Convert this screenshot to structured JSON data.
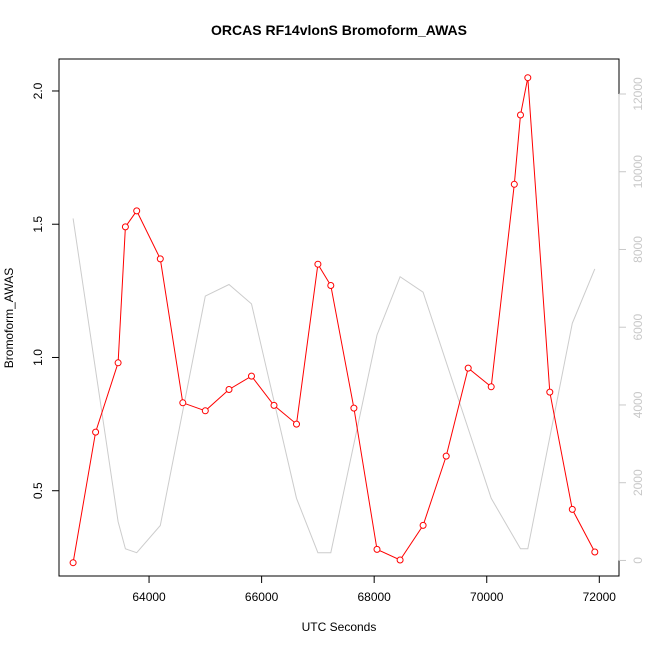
{
  "chart_data": {
    "type": "line",
    "title": "ORCAS RF14vlonS Bromoform_AWAS",
    "xlabel": "UTC Seconds",
    "ylabel": "Bromoform_AWAS",
    "xlim": [
      62400,
      72350
    ],
    "ylim": [
      0.18,
      2.12
    ],
    "y2lim": [
      -400,
      12900
    ],
    "x_ticks": [
      64000,
      66000,
      68000,
      70000,
      72000
    ],
    "x_tick_labels": [
      "64000",
      "66000",
      "68000",
      "70000",
      "72000"
    ],
    "y_ticks": [
      0.5,
      1.0,
      1.5,
      2.0
    ],
    "y_tick_labels": [
      "0.5",
      "1.0",
      "1.5",
      "2.0"
    ],
    "y2_ticks": [
      0,
      2000,
      4000,
      6000,
      8000,
      10000,
      12000
    ],
    "y2_tick_labels": [
      "0",
      "2000",
      "4000",
      "6000",
      "8000",
      "10000",
      "12000"
    ],
    "colors": {
      "primary": "#ff0000",
      "secondary": "#cccccc",
      "secondary_axis": "#c8c8c8"
    },
    "series": [
      {
        "axis": "left",
        "style": "line+points",
        "x": [
          62650,
          63050,
          63450,
          63580,
          63780,
          64200,
          64600,
          65000,
          65420,
          65820,
          66220,
          66620,
          67000,
          67230,
          67640,
          68050,
          68460,
          68870,
          69280,
          69670,
          70080,
          70490,
          70600,
          70730,
          71120,
          71520,
          71920
        ],
        "y": [
          0.23,
          0.72,
          0.98,
          1.49,
          1.55,
          1.37,
          0.83,
          0.8,
          0.88,
          0.93,
          0.82,
          0.75,
          1.35,
          1.27,
          0.81,
          0.28,
          0.24,
          0.37,
          0.63,
          0.96,
          0.89,
          1.65,
          1.91,
          2.05,
          0.87,
          0.43,
          0.27
        ]
      },
      {
        "axis": "right",
        "style": "line",
        "x": [
          62650,
          63450,
          63580,
          63780,
          64200,
          65000,
          65420,
          65820,
          66620,
          67000,
          67230,
          68050,
          68460,
          68870,
          70080,
          70600,
          70730,
          71520,
          71920
        ],
        "y": [
          8800,
          1000,
          300,
          200,
          900,
          6800,
          7100,
          6600,
          1600,
          200,
          200,
          5800,
          7300,
          6900,
          1600,
          300,
          300,
          6100,
          7500
        ]
      }
    ]
  }
}
